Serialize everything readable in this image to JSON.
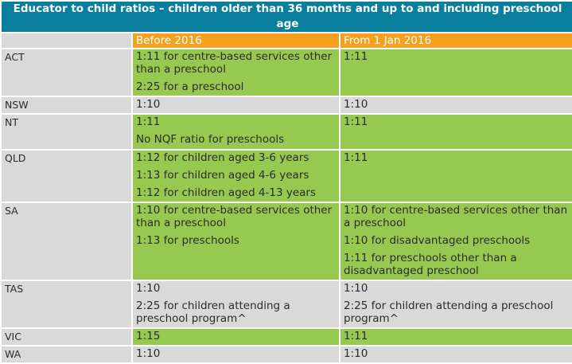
{
  "table": {
    "title": "Educator to child ratios – children  older than 36 months and up to and including preschool age",
    "col_headers": [
      "",
      "Before 2016",
      "From 1 Jan 2016"
    ],
    "rows": [
      {
        "state": "ACT",
        "before": [
          "1:11 for centre-based services other than a preschool",
          "2:25 for a preschool"
        ],
        "from": [
          "1:11"
        ]
      },
      {
        "state": "NSW",
        "before": [
          "1:10"
        ],
        "from": [
          "1:10"
        ]
      },
      {
        "state": "NT",
        "before": [
          "1:11",
          "No NQF ratio for preschools"
        ],
        "from": [
          "1:11"
        ]
      },
      {
        "state": "QLD",
        "before": [
          "1:12 for children aged 3-6 years",
          "1:13 for children aged 4-6 years",
          "1:12  for children aged 4-13 years"
        ],
        "from": [
          "1:11"
        ]
      },
      {
        "state": "SA",
        "before": [
          "1:10 for centre-based services other than a preschool",
          "1:13 for preschools"
        ],
        "from": [
          "1:10 for centre-based services other than a preschool",
          "1:10 for disadvantaged preschools",
          "1:11 for preschools other than a disadvantaged preschool"
        ]
      },
      {
        "state": "TAS",
        "before": [
          "1:10",
          "2:25 for children attending a preschool program^"
        ],
        "from": [
          "1:10",
          "2:25 for children attending a preschool program^"
        ]
      },
      {
        "state": "VIC",
        "before": [
          "1:15"
        ],
        "from": [
          "1:11"
        ]
      },
      {
        "state": "WA",
        "before": [
          "1:10"
        ],
        "from": [
          "1:10"
        ]
      }
    ]
  },
  "colors": {
    "title_bg": "#0a7f9d",
    "header_bg": "#f5a01e",
    "changed_bg": "#97c950",
    "unchanged_bg": "#d9d9d9"
  }
}
